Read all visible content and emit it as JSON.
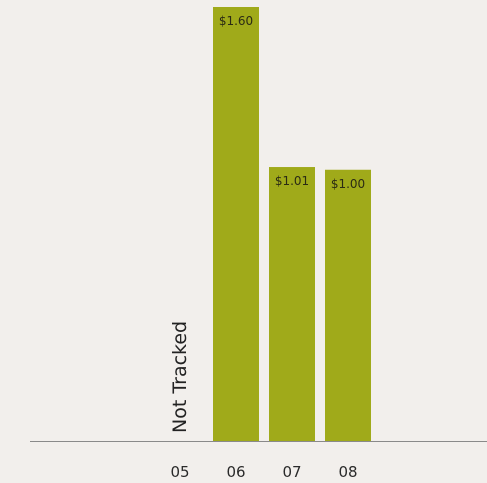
{
  "chart_data": {
    "type": "bar",
    "categories": [
      "05",
      "06",
      "07",
      "08"
    ],
    "values": [
      null,
      1.6,
      1.01,
      1.0
    ],
    "data_labels": [
      "",
      "$1.60",
      "$1.01",
      "$1.00"
    ],
    "annotations": [
      {
        "category": "05",
        "text": "Not Tracked"
      }
    ],
    "ylim": [
      0,
      1.6
    ],
    "grid": false,
    "legend": "none"
  },
  "colors": {
    "background": "#f2efec",
    "bar": "#a0aa1a",
    "baseline": "#8a8a8a",
    "text": "#222222"
  }
}
